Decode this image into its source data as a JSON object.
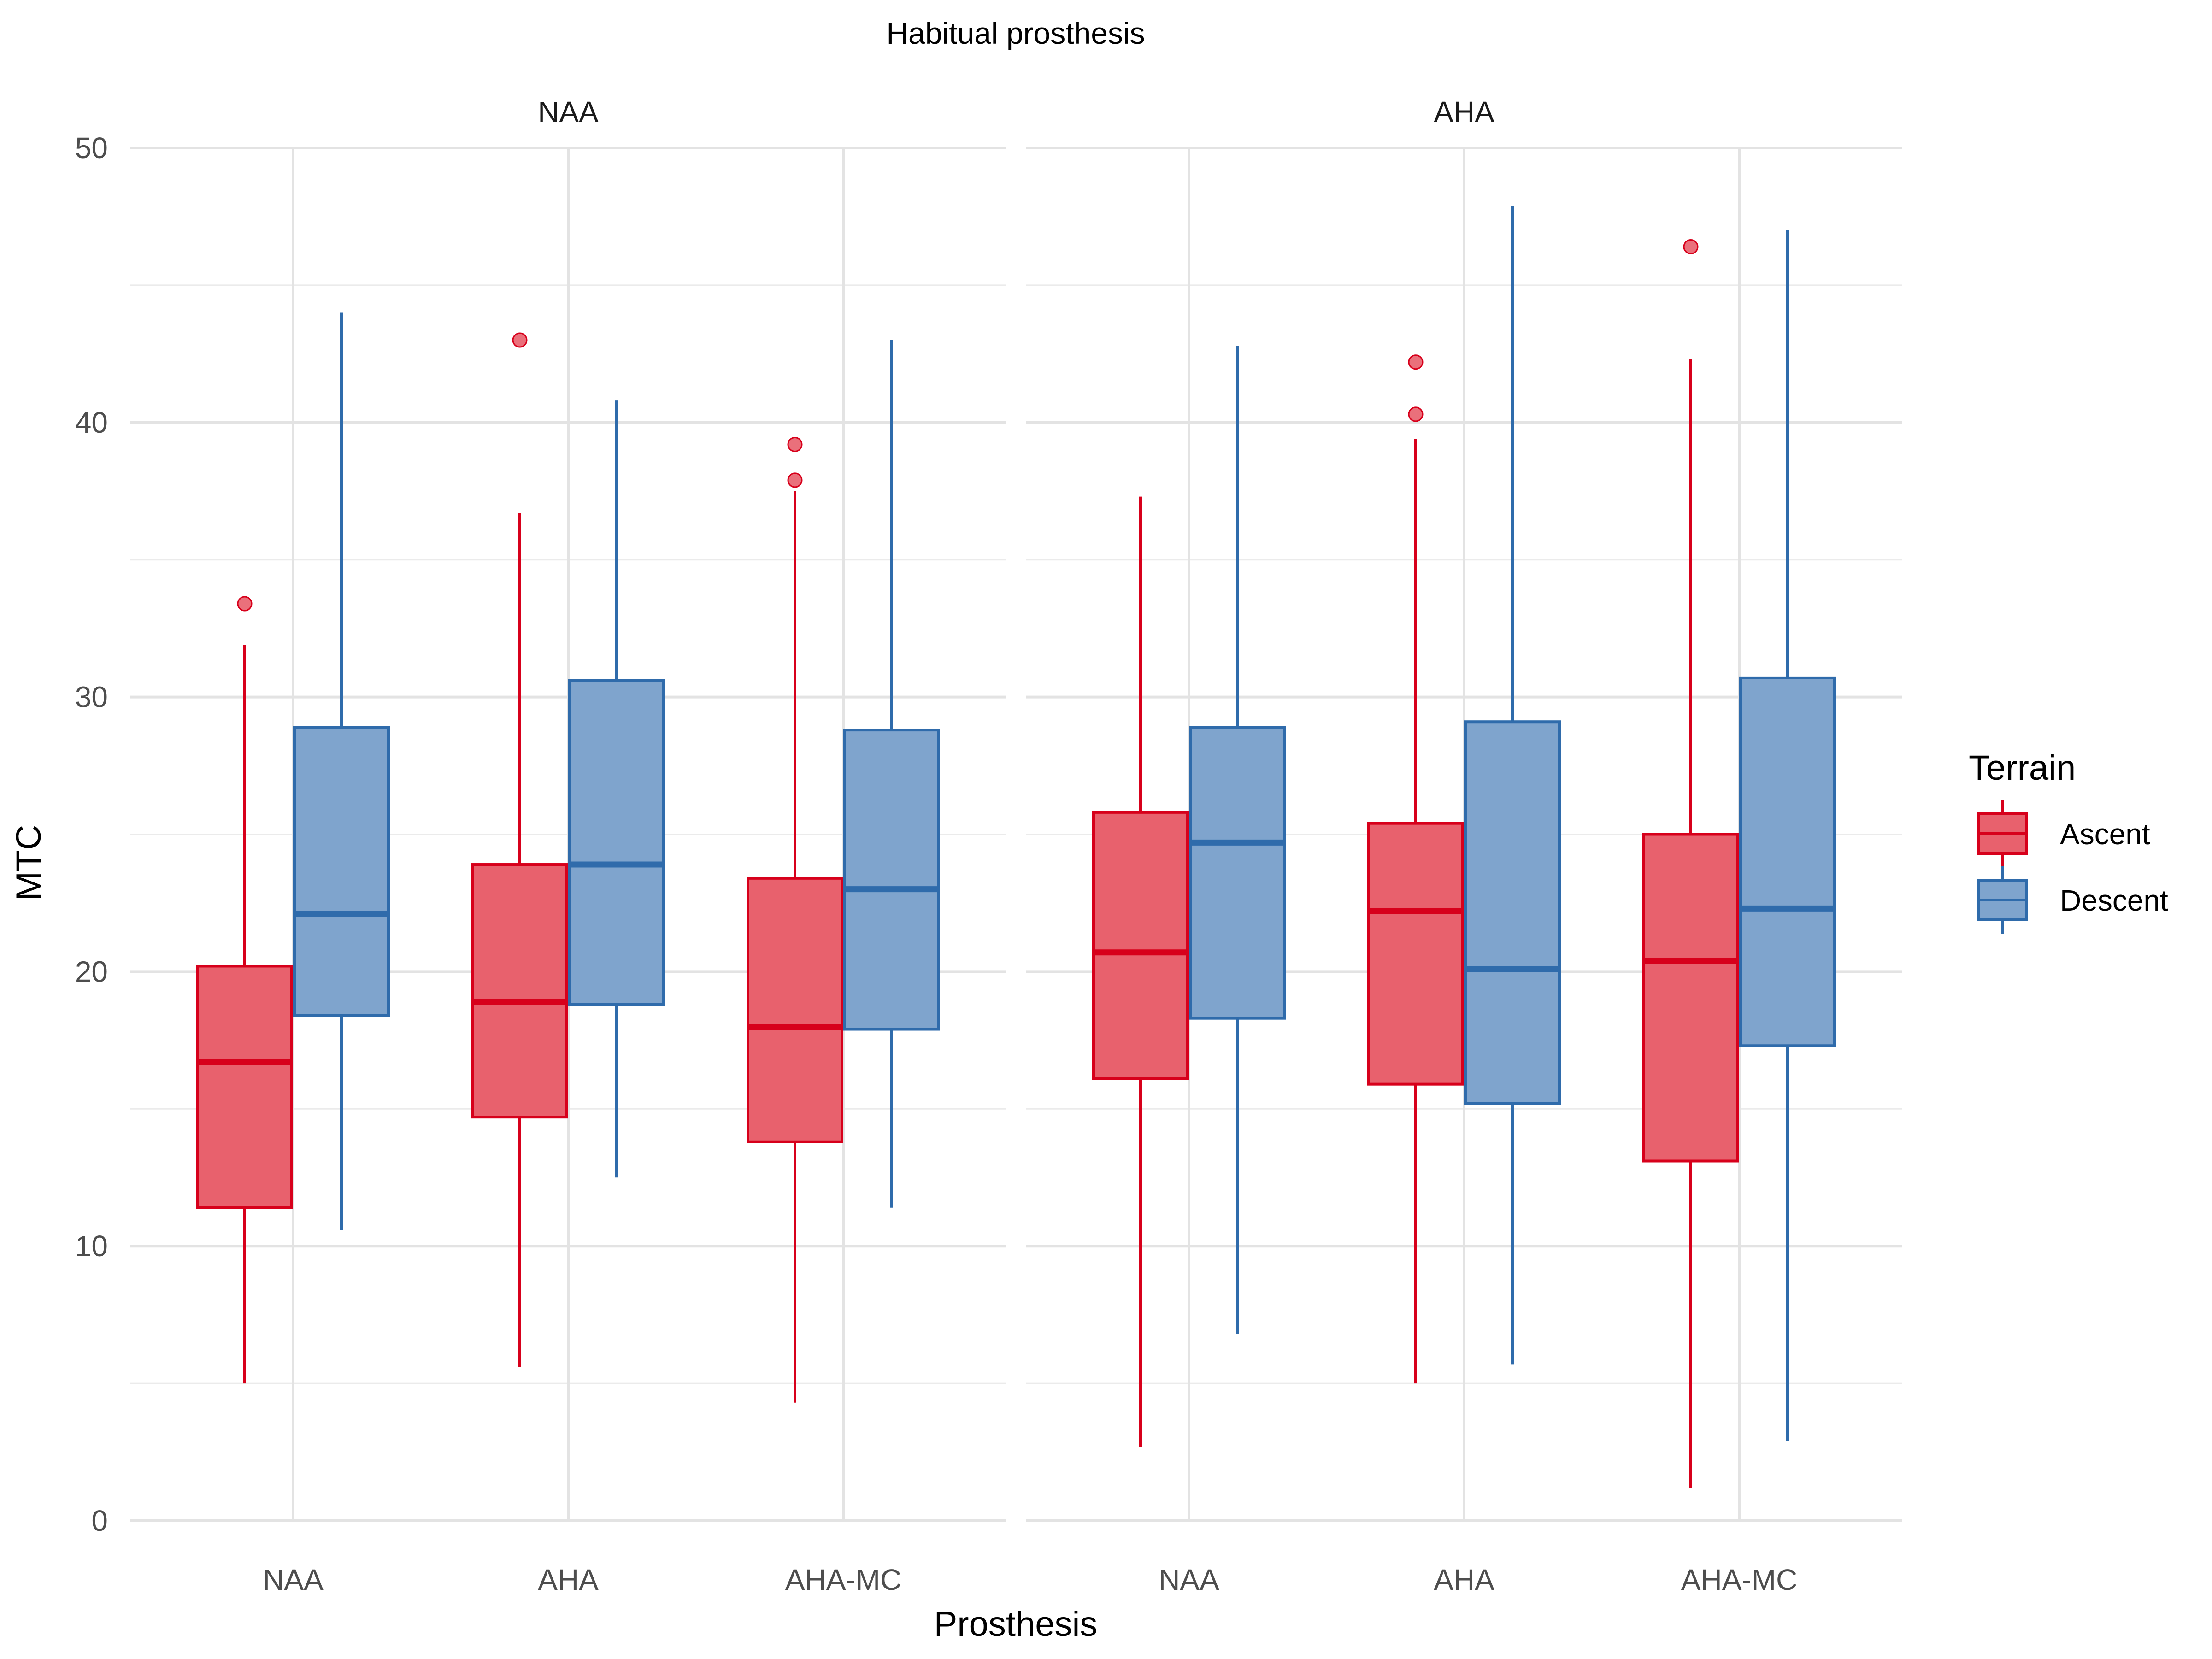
{
  "chart_data": {
    "type": "box",
    "title": "Habitual prosthesis",
    "xlabel": "Prosthesis",
    "ylabel": "MTC",
    "ylim": [
      0,
      50
    ],
    "yticks": [
      0,
      10,
      20,
      30,
      40,
      50
    ],
    "grid": true,
    "legend": {
      "title": "Terrain",
      "placement": "right",
      "entries": [
        {
          "name": "Ascent",
          "color": "#e41a1c"
        },
        {
          "name": "Descent",
          "color": "#377eb8"
        }
      ]
    },
    "colors": {
      "Ascent": {
        "stroke": "#d7001b",
        "fill": "#e8616d"
      },
      "Descent": {
        "stroke": "#2f6bab",
        "fill": "#7fa4cd"
      }
    },
    "categories": [
      "NAA",
      "AHA",
      "AHA-MC"
    ],
    "facets": [
      {
        "label": "NAA",
        "groups": [
          {
            "category": "NAA",
            "Ascent": {
              "whislo": 5.0,
              "q1": 11.4,
              "med": 16.7,
              "q3": 20.2,
              "whishi": 31.9,
              "outliers": [
                33.4
              ]
            },
            "Descent": {
              "whislo": 10.6,
              "q1": 18.4,
              "med": 22.1,
              "q3": 28.9,
              "whishi": 44.0,
              "outliers": []
            }
          },
          {
            "category": "AHA",
            "Ascent": {
              "whislo": 5.6,
              "q1": 14.7,
              "med": 18.9,
              "q3": 23.9,
              "whishi": 36.7,
              "outliers": [
                43.0
              ]
            },
            "Descent": {
              "whislo": 12.5,
              "q1": 18.8,
              "med": 23.9,
              "q3": 30.6,
              "whishi": 40.8,
              "outliers": []
            }
          },
          {
            "category": "AHA-MC",
            "Ascent": {
              "whislo": 4.3,
              "q1": 13.8,
              "med": 18.0,
              "q3": 23.4,
              "whishi": 37.5,
              "outliers": [
                37.9,
                39.2
              ]
            },
            "Descent": {
              "whislo": 11.4,
              "q1": 17.9,
              "med": 23.0,
              "q3": 28.8,
              "whishi": 43.0,
              "outliers": []
            }
          }
        ]
      },
      {
        "label": "AHA",
        "groups": [
          {
            "category": "NAA",
            "Ascent": {
              "whislo": 2.7,
              "q1": 16.1,
              "med": 20.7,
              "q3": 25.8,
              "whishi": 37.3,
              "outliers": []
            },
            "Descent": {
              "whislo": 6.8,
              "q1": 18.3,
              "med": 24.7,
              "q3": 28.9,
              "whishi": 42.8,
              "outliers": []
            }
          },
          {
            "category": "AHA",
            "Ascent": {
              "whislo": 5.0,
              "q1": 15.9,
              "med": 22.2,
              "q3": 25.4,
              "whishi": 39.4,
              "outliers": [
                40.3,
                42.2
              ]
            },
            "Descent": {
              "whislo": 5.7,
              "q1": 15.2,
              "med": 20.1,
              "q3": 29.1,
              "whishi": 47.9,
              "outliers": []
            }
          },
          {
            "category": "AHA-MC",
            "Ascent": {
              "whislo": 1.2,
              "q1": 13.1,
              "med": 20.4,
              "q3": 25.0,
              "whishi": 42.3,
              "outliers": [
                46.4
              ]
            },
            "Descent": {
              "whislo": 2.9,
              "q1": 17.3,
              "med": 22.3,
              "q3": 30.7,
              "whishi": 47.0,
              "outliers": []
            }
          }
        ]
      }
    ]
  }
}
